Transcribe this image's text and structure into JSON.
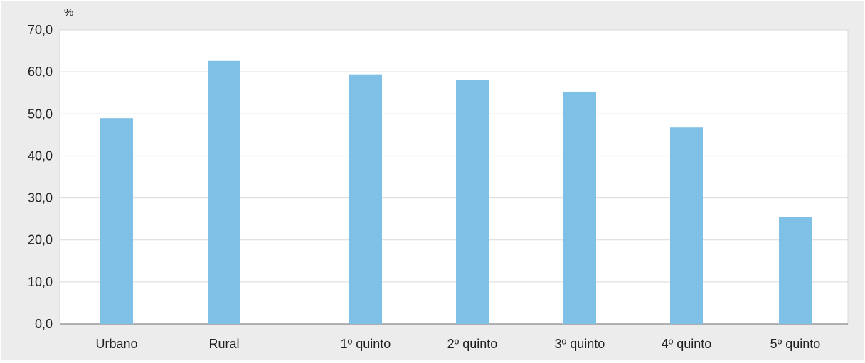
{
  "chart_data": {
    "type": "bar",
    "ylabel": "%",
    "ylim": [
      0,
      70
    ],
    "yticks": [
      "0,0",
      "10,0",
      "20,0",
      "30,0",
      "40,0",
      "50,0",
      "60,0",
      "70,0"
    ],
    "categories": [
      "Urbano",
      "Rural",
      "1º quinto",
      "2º quinto",
      "3º quinto",
      "4º quinto",
      "5º quinto"
    ],
    "values": [
      49.0,
      62.6,
      59.4,
      58.1,
      55.3,
      46.8,
      25.4
    ],
    "grid": true,
    "colors": {
      "bar": "#7fc0e6",
      "plot_bg": "#ffffff",
      "outer_bg": "#ececec",
      "grid": "#d9d9d9"
    }
  }
}
